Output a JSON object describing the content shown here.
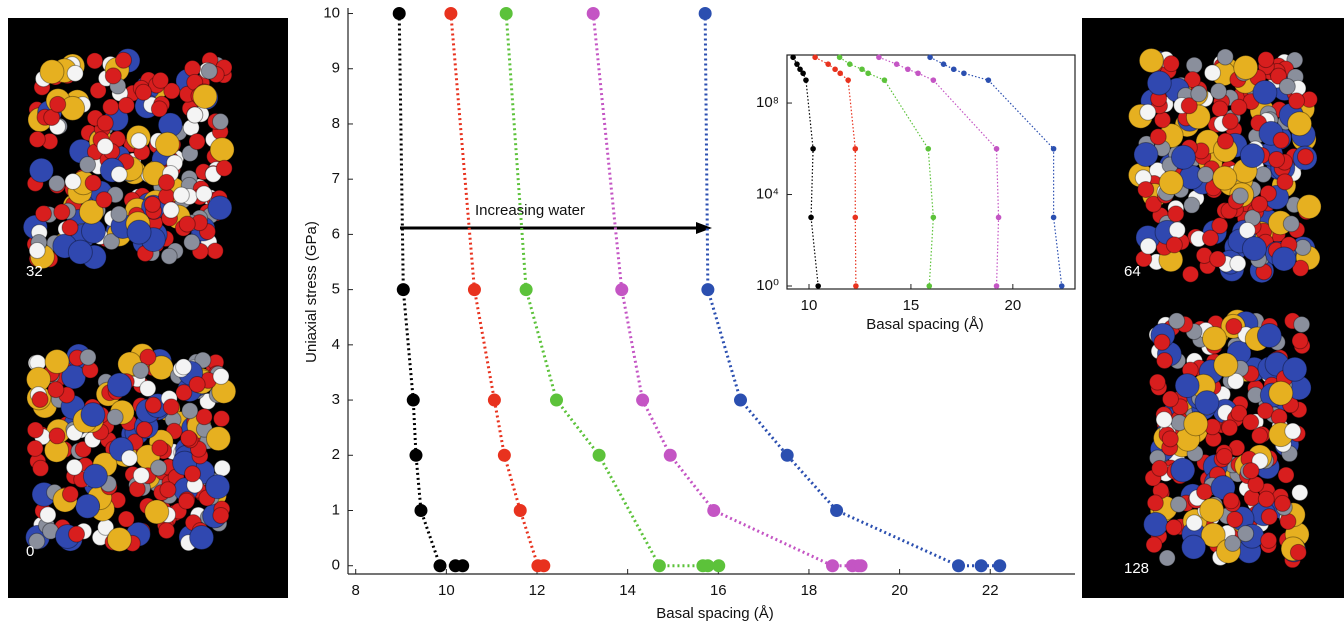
{
  "chart_data": [
    {
      "type": "line",
      "xlabel": "Basal spacing (Å)",
      "ylabel": "Uniaxial stress (GPa)",
      "annotation": "Increasing water",
      "xlim": [
        7.83,
        23.87
      ],
      "ylim": [
        -0.15,
        10.1
      ],
      "xticks": [
        8,
        10,
        12,
        14,
        16,
        18,
        20,
        22
      ],
      "yticks": [
        0,
        1,
        2,
        3,
        4,
        5,
        6,
        7,
        8,
        9,
        10
      ],
      "series": [
        {
          "color": "#000000",
          "x": [
            8.96,
            9.05,
            9.27,
            9.33,
            9.44,
            9.86,
            10.2,
            10.36
          ],
          "values": [
            10,
            5,
            3,
            2,
            1,
            0,
            0,
            0
          ]
        },
        {
          "color": "#e8321e",
          "x": [
            10.1,
            10.62,
            11.06,
            11.28,
            11.63,
            12.02,
            12.15
          ],
          "values": [
            10,
            5,
            3,
            2,
            1,
            0,
            0
          ]
        },
        {
          "color": "#5cc23a",
          "x": [
            11.32,
            11.76,
            12.43,
            13.37,
            14.7,
            15.66,
            15.77,
            16.01
          ],
          "values": [
            10,
            5,
            3,
            2,
            0,
            0,
            0,
            0
          ]
        },
        {
          "color": "#c455c4",
          "x": [
            13.24,
            13.87,
            14.33,
            14.94,
            15.9,
            18.52,
            18.96,
            19.09,
            19.15
          ],
          "values": [
            10,
            5,
            3,
            2,
            1,
            0,
            0,
            0,
            0
          ]
        },
        {
          "color": "#2b4fb0",
          "x": [
            15.71,
            15.77,
            16.49,
            17.52,
            18.61,
            21.3,
            21.8,
            22.21
          ],
          "values": [
            10,
            5,
            3,
            2,
            1,
            0,
            0,
            0
          ]
        }
      ]
    },
    {
      "type": "line",
      "xlabel": "Basal spacing (Å)",
      "ylog": true,
      "xlim": [
        8.92,
        23.05
      ],
      "ylim": [
        0.74,
        12600000000
      ],
      "xticks": [
        10,
        15,
        20
      ],
      "yticks": [
        {
          "value": 1,
          "label": "10⁰"
        },
        {
          "value": 10000,
          "label": "10⁴"
        },
        {
          "value": 100000000,
          "label": "10⁸"
        }
      ],
      "series": [
        {
          "color": "#000000",
          "x": [
            9.22,
            9.41,
            9.56,
            9.71,
            9.85,
            10.2,
            10.1,
            10.45
          ],
          "values": [
            10000000000,
            5000000000,
            3000000000,
            2000000000,
            1000000000,
            1000000,
            1000,
            1
          ]
        },
        {
          "color": "#e8321e",
          "x": [
            10.3,
            10.94,
            11.28,
            11.53,
            11.92,
            12.27,
            12.27,
            12.3
          ],
          "values": [
            10000000000,
            5000000000,
            3000000000,
            2000000000,
            1000000000,
            1000000,
            1000,
            1
          ]
        },
        {
          "color": "#5cc23a",
          "x": [
            11.5,
            12.0,
            12.6,
            12.9,
            13.7,
            15.85,
            16.1,
            15.9
          ],
          "values": [
            10000000000,
            5000000000,
            3000000000,
            2000000000,
            1000000000,
            1000000,
            1000,
            1
          ]
        },
        {
          "color": "#c455c4",
          "x": [
            13.43,
            14.3,
            14.85,
            15.35,
            16.1,
            19.2,
            19.3,
            19.2
          ],
          "values": [
            10000000000,
            5000000000,
            3000000000,
            2000000000,
            1000000000,
            1000000,
            1000,
            1
          ]
        },
        {
          "color": "#2b4fb0",
          "x": [
            15.94,
            16.6,
            17.1,
            17.6,
            18.8,
            22.0,
            22.0,
            22.4
          ],
          "values": [
            10000000000,
            5000000000,
            3000000000,
            2000000000,
            1000000000,
            1000000,
            1000,
            1
          ]
        }
      ]
    }
  ],
  "panels": [
    {
      "label": "32"
    },
    {
      "label": "0"
    },
    {
      "label": "64"
    },
    {
      "label": "128"
    }
  ]
}
